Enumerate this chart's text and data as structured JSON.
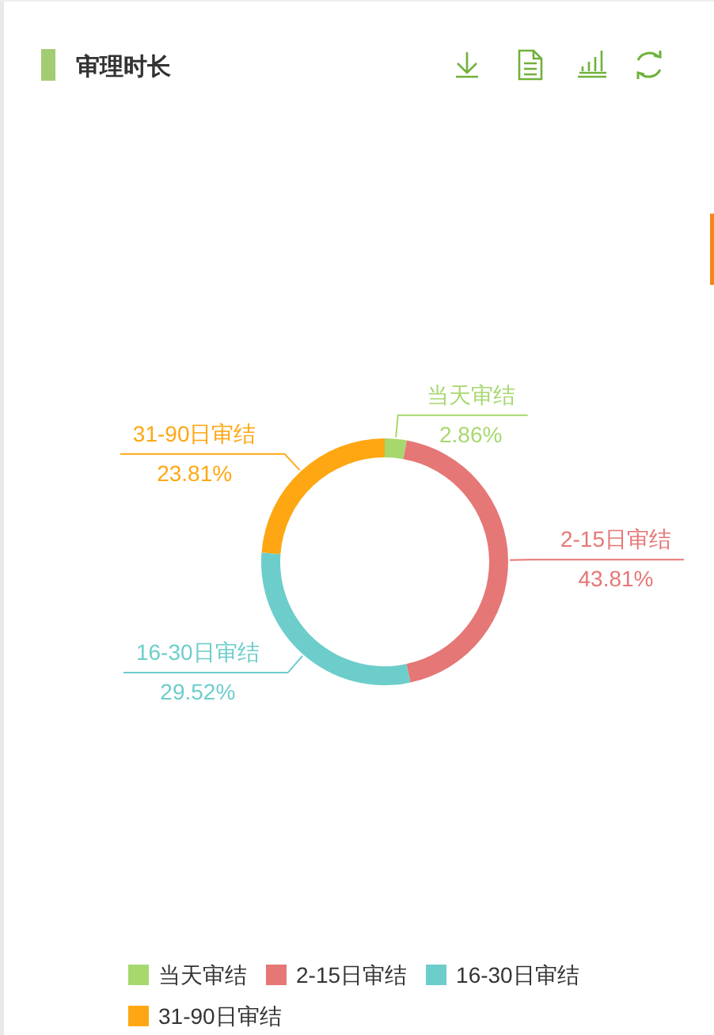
{
  "chart_data": {
    "type": "donut",
    "title": "审理时长",
    "categories": [
      "当天审结",
      "2-15日审结",
      "16-30日审结",
      "31-90日审结"
    ],
    "values": [
      2.86,
      43.81,
      29.52,
      23.81
    ],
    "colors": [
      "#a7d86e",
      "#e57776",
      "#6dcdcb",
      "#fea712"
    ],
    "value_labels": [
      "2.86%",
      "43.81%",
      "29.52%",
      "23.81%"
    ],
    "legend": "bottom"
  }
}
